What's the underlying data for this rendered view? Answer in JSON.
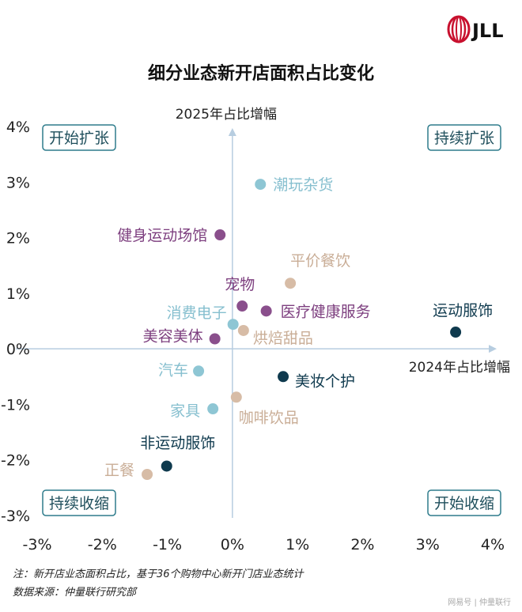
{
  "logo": {
    "text": "JLL",
    "color": "#c8102e"
  },
  "chart_data": {
    "type": "scatter",
    "title": "细分业态新开店面积占比变化",
    "xlabel": "2024年占比增幅",
    "ylabel": "2025年占比增幅",
    "xlim": [
      -3,
      4
    ],
    "ylim": [
      -3,
      4
    ],
    "xticks": [
      "-3%",
      "-2%",
      "-1%",
      "0%",
      "1%",
      "2%",
      "3%",
      "4%"
    ],
    "yticks": [
      "-3%",
      "-2%",
      "-1%",
      "0%",
      "1%",
      "2%",
      "3%",
      "4%"
    ],
    "grid": false,
    "quadrants": {
      "top_left": "开始扩张",
      "top_right": "持续扩张",
      "bottom_left": "持续收缩",
      "bottom_right": "开始收缩"
    },
    "colors": {
      "light_blue": "#8ec6d4",
      "purple": "#8a4f8c",
      "tan": "#d7bca6",
      "navy": "#0f3a4e",
      "axis": "#b7cde0",
      "quadrant_border": "#2e7c8c"
    },
    "points": [
      {
        "label": "潮玩杂货",
        "x": 0.43,
        "y": 2.96,
        "color": "light_blue"
      },
      {
        "label": "健身运动场馆",
        "x": -0.19,
        "y": 2.05,
        "color": "purple"
      },
      {
        "label": "平价餐饮",
        "x": 0.89,
        "y": 1.18,
        "color": "tan"
      },
      {
        "label": "宠物",
        "x": 0.15,
        "y": 0.77,
        "color": "purple"
      },
      {
        "label": "医疗健康服务",
        "x": 0.52,
        "y": 0.68,
        "color": "purple"
      },
      {
        "label": "运动服饰",
        "x": 3.43,
        "y": 0.3,
        "color": "navy"
      },
      {
        "label": "消费电子",
        "x": 0.01,
        "y": 0.44,
        "color": "light_blue"
      },
      {
        "label": "烘焙甜品",
        "x": 0.17,
        "y": 0.33,
        "color": "tan"
      },
      {
        "label": "美容美体",
        "x": -0.27,
        "y": 0.18,
        "color": "purple"
      },
      {
        "label": "汽车",
        "x": -0.52,
        "y": -0.4,
        "color": "light_blue"
      },
      {
        "label": "美妆个护",
        "x": 0.78,
        "y": -0.5,
        "color": "navy"
      },
      {
        "label": "咖啡饮品",
        "x": 0.06,
        "y": -0.87,
        "color": "tan"
      },
      {
        "label": "家具",
        "x": -0.3,
        "y": -1.08,
        "color": "light_blue"
      },
      {
        "label": "非运动服饰",
        "x": -1.01,
        "y": -2.11,
        "color": "navy"
      },
      {
        "label": "正餐",
        "x": -1.31,
        "y": -2.26,
        "color": "tan"
      }
    ]
  },
  "notes": {
    "note": "注：新开店业态面积占比，基于36个购物中心新开门店业态统计",
    "source": "数据来源：仲量联行研究部"
  },
  "watermark": "网易号 | 仲量联行"
}
